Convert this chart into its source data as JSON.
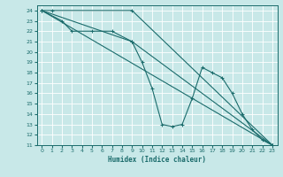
{
  "bg_color": "#c8e8e8",
  "grid_color": "#ffffff",
  "line_color": "#1a6b6b",
  "marker": "+",
  "xlabel": "Humidex (Indice chaleur)",
  "xlim": [
    -0.5,
    23.5
  ],
  "ylim": [
    11,
    24.5
  ],
  "yticks": [
    11,
    12,
    13,
    14,
    15,
    16,
    17,
    18,
    19,
    20,
    21,
    22,
    23,
    24
  ],
  "xticks": [
    0,
    1,
    2,
    3,
    4,
    5,
    6,
    7,
    8,
    9,
    10,
    11,
    12,
    13,
    14,
    15,
    16,
    17,
    18,
    19,
    20,
    21,
    22,
    23
  ],
  "lines": [
    {
      "x": [
        0,
        1,
        9,
        23
      ],
      "y": [
        24,
        24,
        24,
        11
      ]
    },
    {
      "x": [
        0,
        2,
        3,
        5,
        7,
        9,
        10,
        11,
        12,
        13,
        14,
        15,
        16,
        17,
        18,
        19,
        20,
        21,
        22,
        23
      ],
      "y": [
        24,
        23,
        22,
        22,
        22,
        21,
        19,
        16.5,
        13,
        12.8,
        13,
        15.5,
        18.5,
        18,
        17.5,
        16,
        14,
        12.5,
        11.5,
        11
      ]
    },
    {
      "x": [
        0,
        23
      ],
      "y": [
        24,
        11
      ]
    },
    {
      "x": [
        0,
        9,
        23
      ],
      "y": [
        24,
        21,
        11
      ]
    }
  ]
}
